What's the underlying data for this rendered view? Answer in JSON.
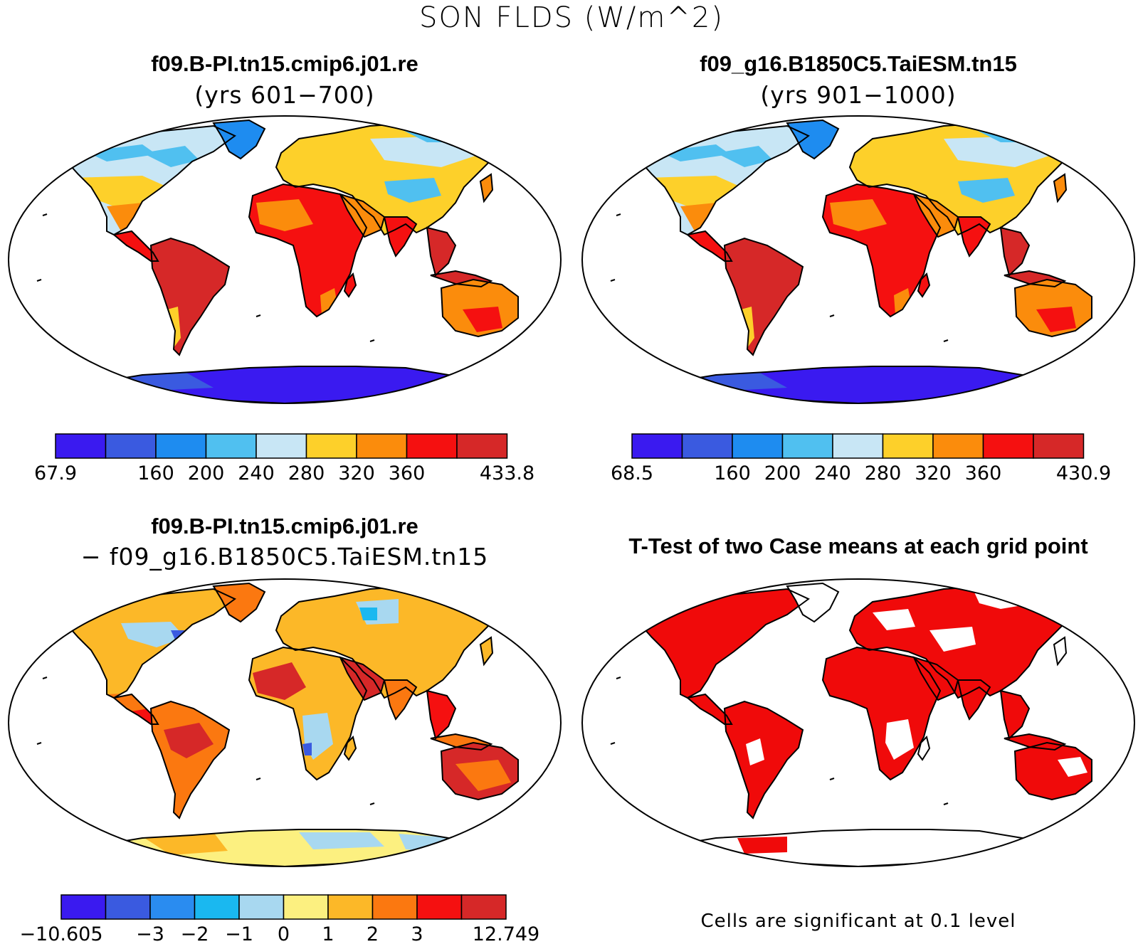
{
  "title": "SON FLDS (W/m^2)",
  "panels": [
    {
      "id": "case1",
      "title": "f09.B-PI.tn15.cmip6.j01.re",
      "subtitle": "(yrs 601−700)",
      "colorbar": {
        "colors": [
          "#3a1af0",
          "#3a5ae0",
          "#1e8cf0",
          "#50c0f0",
          "#c8e6f5",
          "#fdd02a",
          "#fb8c0c",
          "#f51010",
          "#d62828"
        ],
        "labels": [
          "67.9",
          "",
          "160",
          "200",
          "240",
          "280",
          "320",
          "360",
          "",
          "433.8"
        ]
      }
    },
    {
      "id": "case2",
      "title": "f09_g16.B1850C5.TaiESM.tn15",
      "subtitle": "(yrs 901−1000)",
      "colorbar": {
        "colors": [
          "#3a1af0",
          "#3a5ae0",
          "#1e8cf0",
          "#50c0f0",
          "#c8e6f5",
          "#fdd02a",
          "#fb8c0c",
          "#f51010",
          "#d62828"
        ],
        "labels": [
          "68.5",
          "",
          "160",
          "200",
          "240",
          "280",
          "320",
          "360",
          "",
          "430.9"
        ]
      }
    },
    {
      "id": "diff",
      "title": "f09.B-PI.tn15.cmip6.j01.re",
      "subtitle": "− f09_g16.B1850C5.TaiESM.tn15",
      "colorbar": {
        "colors": [
          "#3a1af0",
          "#3a5ae0",
          "#2a8cf0",
          "#1ab8f0",
          "#a8d8f0",
          "#fcf080",
          "#fcb828",
          "#fb7810",
          "#f51010",
          "#d62828"
        ],
        "labels": [
          "−10.605",
          "",
          "−3",
          "−2",
          "−1",
          "0",
          "1",
          "2",
          "3",
          "",
          "12.749"
        ]
      }
    },
    {
      "id": "ttest",
      "title": "T-Test of two Case means at each grid point",
      "subtitle": "",
      "note": "Cells are significant at 0.1 level"
    }
  ],
  "colors": {
    "significant": "#f00a0a",
    "outline": "#000000"
  }
}
